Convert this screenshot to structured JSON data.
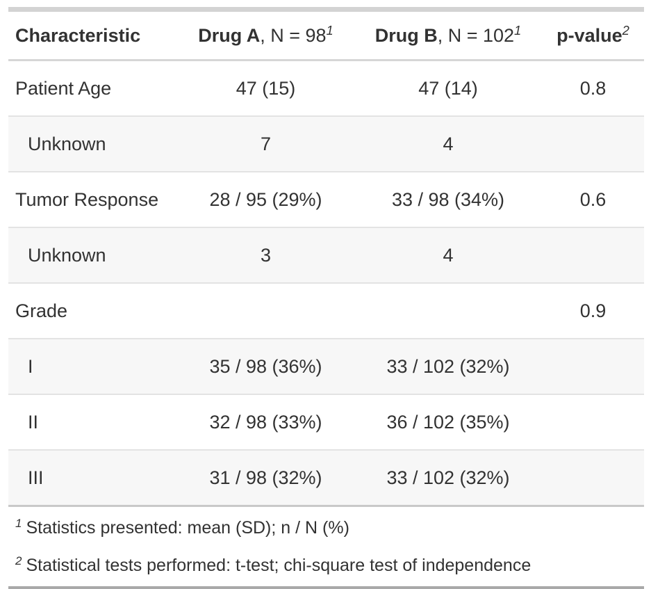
{
  "colors": {
    "text": "#323232",
    "stripe-bg": "#f7f7f7",
    "row-border": "#e3e3e3",
    "header-border": "#d6d6d6",
    "table-top-bar": "#d3d3d3",
    "table-bottom-bar": "#a9a9a9",
    "footnote-border": "#c9c9c9"
  },
  "table": {
    "header": {
      "characteristic": "Characteristic",
      "drug_a_bold": "Drug A",
      "drug_a_rest": ", N = 98",
      "drug_a_sup": "1",
      "drug_b_bold": "Drug B",
      "drug_b_rest": ", N = 102",
      "drug_b_sup": "1",
      "p_value": "p-value",
      "p_value_sup": "2"
    },
    "rows": [
      {
        "label": "Patient Age",
        "indent": false,
        "drug_a": "47 (15)",
        "drug_b": "47 (14)",
        "p": "0.8"
      },
      {
        "label": "Unknown",
        "indent": true,
        "drug_a": "7",
        "drug_b": "4",
        "p": ""
      },
      {
        "label": "Tumor Response",
        "indent": false,
        "drug_a": "28 / 95 (29%)",
        "drug_b": "33 / 98 (34%)",
        "p": "0.6"
      },
      {
        "label": "Unknown",
        "indent": true,
        "drug_a": "3",
        "drug_b": "4",
        "p": ""
      },
      {
        "label": "Grade",
        "indent": false,
        "drug_a": "",
        "drug_b": "",
        "p": "0.9"
      },
      {
        "label": "I",
        "indent": true,
        "drug_a": "35 / 98 (36%)",
        "drug_b": "33 / 102 (32%)",
        "p": ""
      },
      {
        "label": "II",
        "indent": true,
        "drug_a": "32 / 98 (33%)",
        "drug_b": "36 / 102 (35%)",
        "p": ""
      },
      {
        "label": "III",
        "indent": true,
        "drug_a": "31 / 98 (32%)",
        "drug_b": "33 / 102 (32%)",
        "p": ""
      }
    ],
    "footnotes": [
      {
        "marker": "1",
        "text": "Statistics presented: mean (SD); n / N (%)"
      },
      {
        "marker": "2",
        "text": "Statistical tests performed: t-test; chi-square test of independence"
      }
    ]
  },
  "chart_data": {
    "type": "table",
    "title": "",
    "columns": [
      "Characteristic",
      "Drug A, N = 98",
      "Drug B, N = 102",
      "p-value"
    ],
    "rows": [
      [
        "Patient Age",
        "47 (15)",
        "47 (14)",
        "0.8"
      ],
      [
        "Unknown",
        "7",
        "4",
        ""
      ],
      [
        "Tumor Response",
        "28 / 95 (29%)",
        "33 / 98 (34%)",
        "0.6"
      ],
      [
        "Unknown",
        "3",
        "4",
        ""
      ],
      [
        "Grade",
        "",
        "",
        "0.9"
      ],
      [
        "I",
        "35 / 98 (36%)",
        "33 / 102 (32%)",
        ""
      ],
      [
        "II",
        "32 / 98 (33%)",
        "36 / 102 (35%)",
        ""
      ],
      [
        "III",
        "31 / 98 (32%)",
        "33 / 102 (32%)",
        ""
      ]
    ]
  }
}
